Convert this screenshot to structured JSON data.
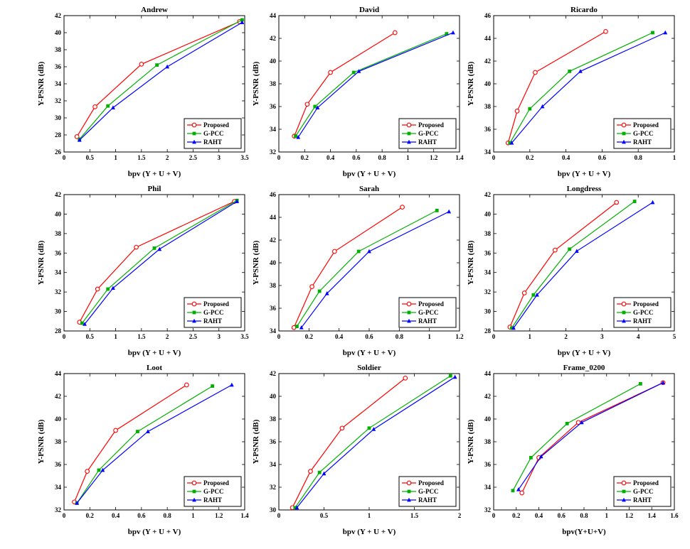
{
  "figure": {
    "background": "#ffffff"
  },
  "series_styles": [
    {
      "name": "Proposed",
      "color": "#ff0000",
      "marker": "circle"
    },
    {
      "name": "G-PCC",
      "color": "#00b000",
      "marker": "square"
    },
    {
      "name": "RAHT",
      "color": "#0000ff",
      "marker": "triangle"
    }
  ],
  "legend": {
    "entries": [
      "Proposed",
      "G-PCC",
      "RAHT"
    ],
    "position": "bottom-right"
  },
  "chart_data": [
    {
      "type": "line",
      "title": "Andrew",
      "xlabel": "bpv (Y + U + V)",
      "ylabel": "Y-PSNR (dB)",
      "xlim": [
        0,
        3.5
      ],
      "ylim": [
        26,
        42
      ],
      "xticks": [
        0,
        0.5,
        1,
        1.5,
        2,
        2.5,
        3,
        3.5
      ],
      "yticks": [
        26,
        28,
        30,
        32,
        34,
        36,
        38,
        40,
        42
      ],
      "legend_pos": "bottom-right",
      "series": [
        {
          "name": "Proposed",
          "x": [
            0.25,
            0.6,
            1.5,
            3.4
          ],
          "y": [
            27.8,
            31.3,
            36.3,
            41.3
          ]
        },
        {
          "name": "G-PCC",
          "x": [
            0.3,
            0.85,
            1.8,
            3.45
          ],
          "y": [
            27.5,
            31.4,
            36.2,
            41.5
          ]
        },
        {
          "name": "RAHT",
          "x": [
            0.3,
            0.95,
            2.0,
            3.45
          ],
          "y": [
            27.4,
            31.2,
            36.0,
            41.2
          ]
        }
      ]
    },
    {
      "type": "line",
      "title": "David",
      "xlabel": "bpv (Y + U + V)",
      "ylabel": "Y-PSNR (dB)",
      "xlim": [
        0,
        1.4
      ],
      "ylim": [
        32,
        44
      ],
      "xticks": [
        0,
        0.2,
        0.4,
        0.6,
        0.8,
        1,
        1.2,
        1.4
      ],
      "yticks": [
        32,
        34,
        36,
        38,
        40,
        42,
        44
      ],
      "legend_pos": "bottom-right",
      "series": [
        {
          "name": "Proposed",
          "x": [
            0.12,
            0.22,
            0.4,
            0.9
          ],
          "y": [
            33.4,
            36.2,
            39.0,
            42.5
          ]
        },
        {
          "name": "G-PCC",
          "x": [
            0.13,
            0.28,
            0.58,
            1.3
          ],
          "y": [
            33.4,
            36.0,
            39.0,
            42.4
          ]
        },
        {
          "name": "RAHT",
          "x": [
            0.15,
            0.3,
            0.62,
            1.35
          ],
          "y": [
            33.3,
            35.9,
            39.1,
            42.5
          ]
        }
      ]
    },
    {
      "type": "line",
      "title": "Ricardo",
      "xlabel": "bpv (Y + U + V)",
      "ylabel": "Y-PSNR (dB)",
      "xlim": [
        0,
        1
      ],
      "ylim": [
        34,
        46
      ],
      "xticks": [
        0,
        0.2,
        0.4,
        0.6,
        0.8,
        1
      ],
      "yticks": [
        34,
        36,
        38,
        40,
        42,
        44,
        46
      ],
      "legend_pos": "bottom-right",
      "series": [
        {
          "name": "Proposed",
          "x": [
            0.08,
            0.13,
            0.23,
            0.62
          ],
          "y": [
            34.8,
            37.6,
            41.0,
            44.6
          ]
        },
        {
          "name": "G-PCC",
          "x": [
            0.09,
            0.2,
            0.42,
            0.88
          ],
          "y": [
            34.8,
            37.8,
            41.1,
            44.5
          ]
        },
        {
          "name": "RAHT",
          "x": [
            0.1,
            0.27,
            0.48,
            0.95
          ],
          "y": [
            34.8,
            38.0,
            41.1,
            44.5
          ]
        }
      ]
    },
    {
      "type": "line",
      "title": "Phil",
      "xlabel": "bpv (Y + U + V)",
      "ylabel": "Y-PSNR (dB)",
      "xlim": [
        0,
        3.5
      ],
      "ylim": [
        28,
        42
      ],
      "xticks": [
        0,
        0.5,
        1,
        1.5,
        2,
        2.5,
        3,
        3.5
      ],
      "yticks": [
        28,
        30,
        32,
        34,
        36,
        38,
        40,
        42
      ],
      "legend_pos": "bottom-right",
      "series": [
        {
          "name": "Proposed",
          "x": [
            0.3,
            0.65,
            1.4,
            3.3
          ],
          "y": [
            28.9,
            32.3,
            36.6,
            41.3
          ]
        },
        {
          "name": "G-PCC",
          "x": [
            0.35,
            0.85,
            1.75,
            3.35
          ],
          "y": [
            28.8,
            32.3,
            36.5,
            41.4
          ]
        },
        {
          "name": "RAHT",
          "x": [
            0.4,
            0.95,
            1.85,
            3.35
          ],
          "y": [
            28.7,
            32.4,
            36.4,
            41.3
          ]
        }
      ]
    },
    {
      "type": "line",
      "title": "Sarah",
      "xlabel": "bpv (Y + U + V)",
      "ylabel": "Y-PSNR (dB)",
      "xlim": [
        0,
        1.2
      ],
      "ylim": [
        34,
        46
      ],
      "xticks": [
        0,
        0.2,
        0.4,
        0.6,
        0.8,
        1,
        1.2
      ],
      "yticks": [
        34,
        36,
        38,
        40,
        42,
        44,
        46
      ],
      "legend_pos": "bottom-right",
      "series": [
        {
          "name": "Proposed",
          "x": [
            0.1,
            0.22,
            0.37,
            0.82
          ],
          "y": [
            34.3,
            37.9,
            41.0,
            44.9
          ]
        },
        {
          "name": "G-PCC",
          "x": [
            0.12,
            0.27,
            0.53,
            1.05
          ],
          "y": [
            34.4,
            37.5,
            41.0,
            44.6
          ]
        },
        {
          "name": "RAHT",
          "x": [
            0.15,
            0.32,
            0.6,
            1.13
          ],
          "y": [
            34.3,
            37.3,
            41.0,
            44.5
          ]
        }
      ]
    },
    {
      "type": "line",
      "title": "Longdress",
      "xlabel": "bpv (Y + U + V)",
      "ylabel": "Y-PSNR (dB)",
      "xlim": [
        0,
        5
      ],
      "ylim": [
        28,
        42
      ],
      "xticks": [
        0,
        1,
        2,
        3,
        4,
        5
      ],
      "yticks": [
        28,
        30,
        32,
        34,
        36,
        38,
        40,
        42
      ],
      "legend_pos": "bottom-right",
      "series": [
        {
          "name": "Proposed",
          "x": [
            0.45,
            0.85,
            1.7,
            3.4
          ],
          "y": [
            28.4,
            31.9,
            36.3,
            41.2
          ]
        },
        {
          "name": "G-PCC",
          "x": [
            0.5,
            1.1,
            2.1,
            3.9
          ],
          "y": [
            28.3,
            31.7,
            36.4,
            41.3
          ]
        },
        {
          "name": "RAHT",
          "x": [
            0.55,
            1.2,
            2.3,
            4.4
          ],
          "y": [
            28.3,
            31.7,
            36.2,
            41.2
          ]
        }
      ]
    },
    {
      "type": "line",
      "title": "Loot",
      "xlabel": "bpv (Y + U + V)",
      "ylabel": "Y-PSNR (dB)",
      "xlim": [
        0,
        1.4
      ],
      "ylim": [
        32,
        44
      ],
      "xticks": [
        0,
        0.2,
        0.4,
        0.6,
        0.8,
        1,
        1.2,
        1.4
      ],
      "yticks": [
        32,
        34,
        36,
        38,
        40,
        42,
        44
      ],
      "legend_pos": "bottom-right",
      "series": [
        {
          "name": "Proposed",
          "x": [
            0.08,
            0.18,
            0.4,
            0.95
          ],
          "y": [
            32.7,
            35.4,
            39.0,
            43.0
          ]
        },
        {
          "name": "G-PCC",
          "x": [
            0.1,
            0.27,
            0.57,
            1.15
          ],
          "y": [
            32.6,
            35.5,
            38.9,
            42.9
          ]
        },
        {
          "name": "RAHT",
          "x": [
            0.1,
            0.3,
            0.65,
            1.3
          ],
          "y": [
            32.6,
            35.5,
            38.9,
            43.0
          ]
        }
      ]
    },
    {
      "type": "line",
      "title": "Soldier",
      "xlabel": "bpv (Y + U + V)",
      "ylabel": "Y-PSNR (dB)",
      "xlim": [
        0,
        2
      ],
      "ylim": [
        30,
        42
      ],
      "xticks": [
        0,
        0.5,
        1,
        1.5,
        2
      ],
      "yticks": [
        30,
        32,
        34,
        36,
        38,
        40,
        42
      ],
      "legend_pos": "bottom-right",
      "series": [
        {
          "name": "Proposed",
          "x": [
            0.15,
            0.35,
            0.7,
            1.4
          ],
          "y": [
            30.2,
            33.4,
            37.2,
            41.6
          ]
        },
        {
          "name": "G-PCC",
          "x": [
            0.18,
            0.45,
            1.0,
            1.9
          ],
          "y": [
            30.2,
            33.3,
            37.2,
            41.8
          ]
        },
        {
          "name": "RAHT",
          "x": [
            0.2,
            0.5,
            1.05,
            1.95
          ],
          "y": [
            30.2,
            33.2,
            37.1,
            41.7
          ]
        }
      ]
    },
    {
      "type": "line",
      "title": "Frame_0200",
      "xlabel": "bpv(Y+U+V)",
      "ylabel": "Y-PSNR (dB)",
      "xlim": [
        0,
        1.6
      ],
      "ylim": [
        32,
        44
      ],
      "xticks": [
        0,
        0.2,
        0.4,
        0.6,
        0.8,
        1,
        1.2,
        1.4,
        1.6
      ],
      "yticks": [
        32,
        34,
        36,
        38,
        40,
        42,
        44
      ],
      "legend_pos": "bottom-right",
      "series": [
        {
          "name": "Proposed",
          "x": [
            0.25,
            0.4,
            0.75,
            1.5
          ],
          "y": [
            33.5,
            36.6,
            39.7,
            43.2
          ]
        },
        {
          "name": "G-PCC",
          "x": [
            0.17,
            0.33,
            0.65,
            1.3
          ],
          "y": [
            33.7,
            36.6,
            39.6,
            43.1
          ]
        },
        {
          "name": "RAHT",
          "x": [
            0.22,
            0.42,
            0.78,
            1.5
          ],
          "y": [
            33.8,
            36.7,
            39.7,
            43.2
          ]
        }
      ]
    }
  ]
}
